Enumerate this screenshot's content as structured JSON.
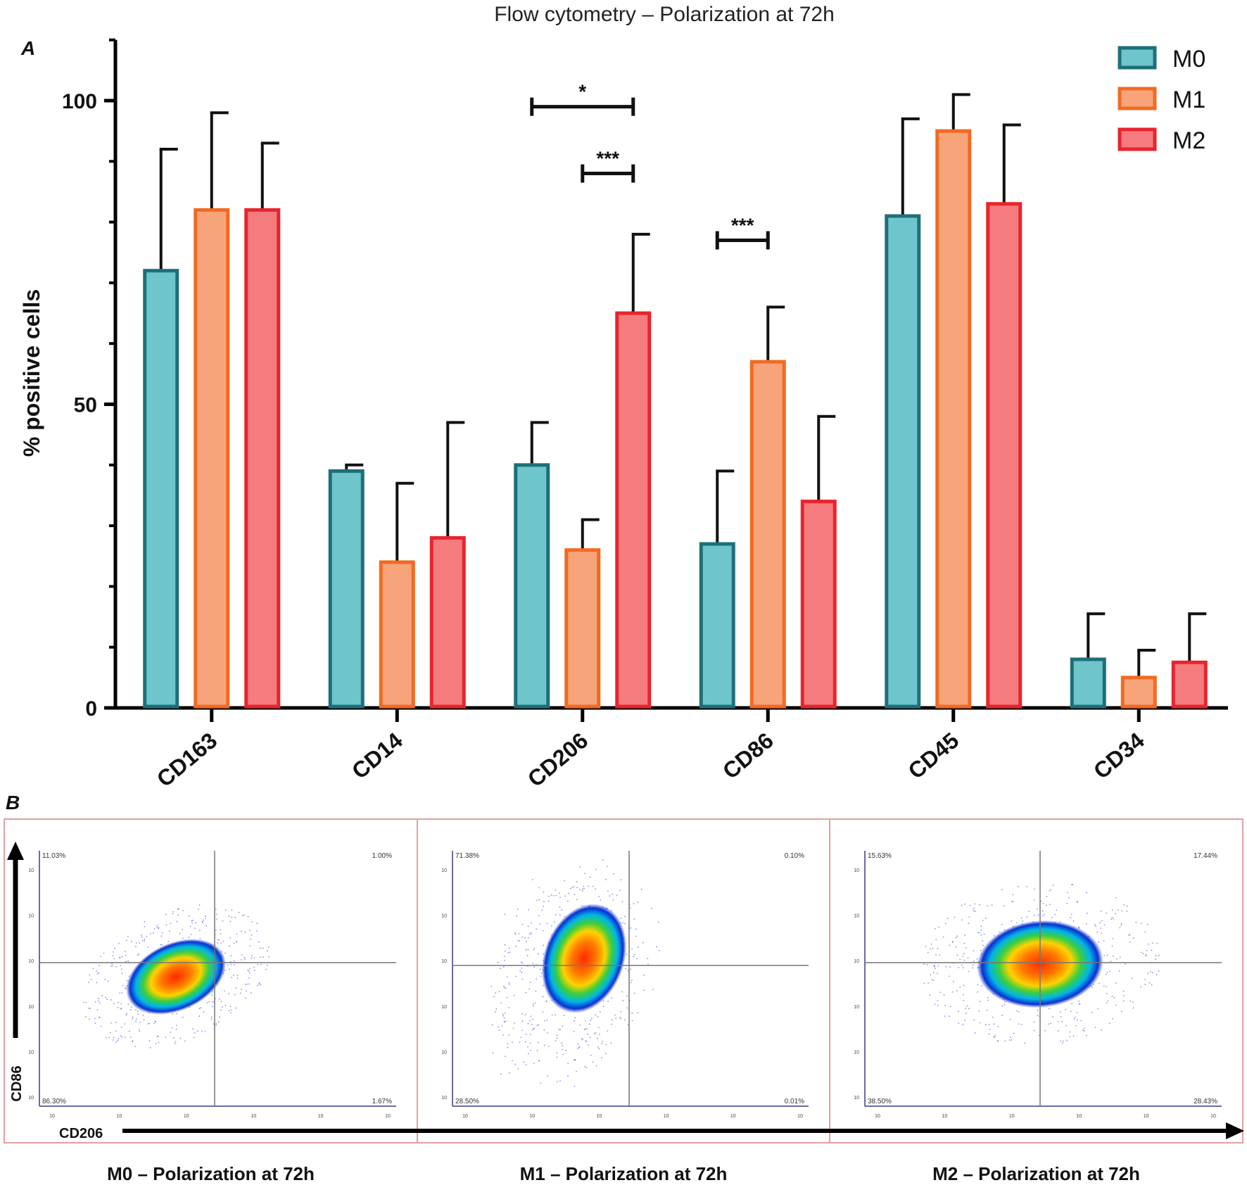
{
  "title": "Flow cytometry – Polarization at 72h",
  "panel_a_label": "A",
  "panel_b_label": "B",
  "colors": {
    "M0": {
      "fill": "#6ec6cc",
      "stroke": "#1f6f78"
    },
    "M1": {
      "fill": "#f7a47a",
      "stroke": "#f26a21"
    },
    "M2": {
      "fill": "#f47c7f",
      "stroke": "#e8242c"
    }
  },
  "chart_data": {
    "type": "bar",
    "title": "Flow cytometry – Polarization at 72h",
    "ylabel": "% positive cells",
    "xlabel": "",
    "ylim": [
      0,
      110
    ],
    "yticks": [
      0,
      50,
      100
    ],
    "categories": [
      "CD163",
      "CD14",
      "CD206",
      "CD86",
      "CD45",
      "CD34"
    ],
    "series": [
      {
        "name": "M0",
        "values": [
          72,
          39,
          40,
          27,
          81,
          8
        ],
        "errors": [
          20,
          1,
          7,
          12,
          16,
          7.5
        ]
      },
      {
        "name": "M1",
        "values": [
          82,
          24,
          26,
          57,
          95,
          5
        ],
        "errors": [
          16,
          13,
          5,
          9,
          6,
          4.5
        ]
      },
      {
        "name": "M2",
        "values": [
          82,
          28,
          65,
          34,
          83,
          7.5
        ],
        "errors": [
          11,
          19,
          13,
          14,
          13,
          8
        ]
      }
    ],
    "legend": {
      "position": "top-right",
      "entries": [
        "M0",
        "M1",
        "M2"
      ]
    },
    "significance": [
      {
        "category": "CD206",
        "from": "M0",
        "to": "M2",
        "y": 99,
        "label": "*"
      },
      {
        "category": "CD206",
        "from": "M1",
        "to": "M2",
        "y": 88,
        "label": "***"
      },
      {
        "category": "CD86",
        "from": "M0",
        "to": "M1",
        "y": 77,
        "label": "***"
      }
    ]
  },
  "panel_b": {
    "y_axis_label": "CD86",
    "x_axis_label": "CD206",
    "plots": [
      {
        "caption": "M0 – Polarization at 72h",
        "q_ul": "11.03%",
        "q_ur": "1.00%",
        "q_ll": "86.30%",
        "q_lr": "1.67%"
      },
      {
        "caption": "M1 – Polarization at 72h",
        "q_ul": "71.38%",
        "q_ur": "0.10%",
        "q_ll": "28.50%",
        "q_lr": "0.01%"
      },
      {
        "caption": "M2 – Polarization at 72h",
        "q_ul": "15.63%",
        "q_ur": "17.44%",
        "q_ll": "38.50%",
        "q_lr": "28.43%"
      }
    ]
  }
}
